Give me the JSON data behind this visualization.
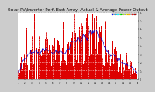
{
  "title": "Solar PV/Inverter Perf. East Array  Actual & Average Power Output",
  "title_fontsize": 3.8,
  "bg_color": "#cccccc",
  "plot_bg_color": "#ffffff",
  "bar_color": "#dd0000",
  "avg_line_color": "#0000cc",
  "grid_color": "#ffffff",
  "text_color": "#000000",
  "ylim": [
    0,
    8000
  ],
  "yticks": [
    0,
    1000,
    2000,
    3000,
    4000,
    5000,
    6000,
    7000,
    8000
  ],
  "ytick_labels": [
    "0",
    "1k",
    "2k",
    "3k",
    "4k",
    "5k",
    "6k",
    "7k",
    "8k"
  ],
  "n_bars": 200,
  "seed": 7
}
